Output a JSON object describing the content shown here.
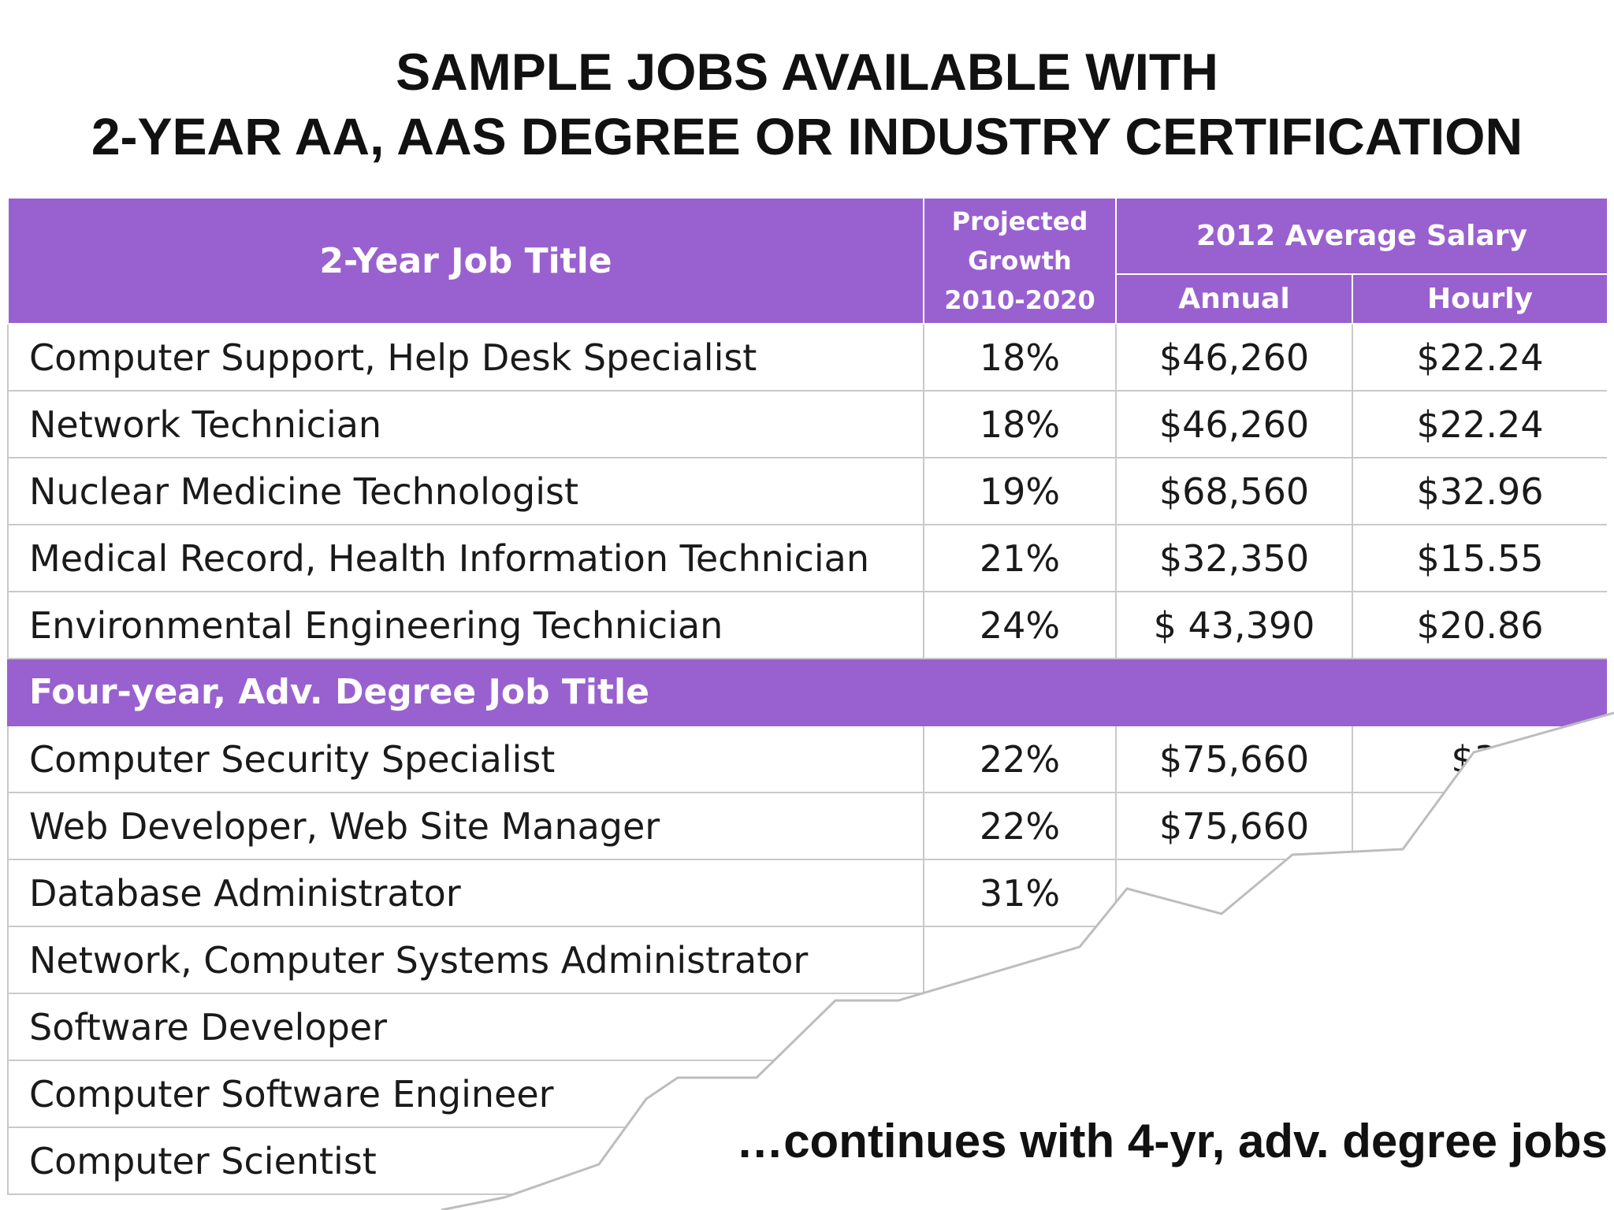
{
  "title": {
    "line1": "SAMPLE JOBS AVAILABLE WITH",
    "line2": "2-YEAR AA, AAS DEGREE OR INDUSTRY CERTIFICATION"
  },
  "table": {
    "headers": {
      "job_title": "2-Year Job Title",
      "growth_1": "Projected",
      "growth_2": "Growth",
      "growth_3": "2010-2020",
      "salary": "2012 Average Salary",
      "annual": "Annual",
      "hourly": "Hourly"
    },
    "rows": [
      {
        "title": "Computer Support, Help Desk Specialist",
        "growth": "18%",
        "annual": "$46,260",
        "hourly": "$22.24"
      },
      {
        "title": "Network Technician",
        "growth": "18%",
        "annual": "$46,260",
        "hourly": "$22.24"
      },
      {
        "title": "Nuclear Medicine Technologist",
        "growth": "19%",
        "annual": "$68,560",
        "hourly": "$32.96"
      },
      {
        "title": "Medical Record, Health Information Technician",
        "growth": "21%",
        "annual": "$32,350",
        "hourly": "$15.55"
      },
      {
        "title": "Environmental Engineering Technician",
        "growth": "24%",
        "annual": "$ 43,390",
        "hourly": "$20.86"
      }
    ],
    "section_title": "Four-year, Adv. Degree Job Title",
    "rows2": [
      {
        "title": "Computer Security Specialist",
        "growth": "22%",
        "annual": "$75,660",
        "hourly": "$3·"
      },
      {
        "title": "Web Developer, Web Site Manager",
        "growth": "22%",
        "annual": "$75,660",
        "hourly": ""
      },
      {
        "title": "Database Administrator",
        "growth": "31%",
        "annual": "",
        "hourly": ""
      },
      {
        "title": "Network, Computer Systems Administrator",
        "growth": "",
        "annual": "",
        "hourly": ""
      },
      {
        "title": "Software Developer",
        "growth": "",
        "annual": "",
        "hourly": ""
      },
      {
        "title": "Computer Software Engineer",
        "growth": "",
        "annual": "",
        "hourly": ""
      },
      {
        "title": "Computer Scientist",
        "growth": "",
        "annual": "",
        "hourly": ""
      }
    ]
  },
  "footer_note": "…continues with 4-yr, adv. degree jobs"
}
